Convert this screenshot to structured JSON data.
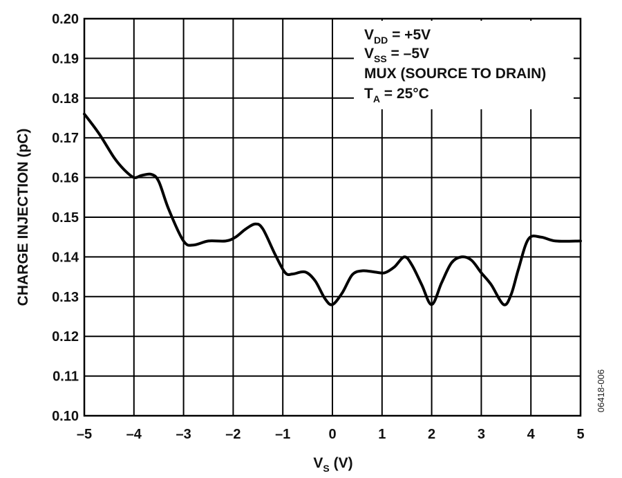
{
  "chart_data": {
    "type": "line",
    "title": "",
    "xlabel": "V",
    "xlabel_sub": "S",
    "xlabel_unit": " (V)",
    "ylabel": "CHARGE INJECTION (pC)",
    "xlim": [
      -5,
      5
    ],
    "ylim": [
      0.1,
      0.2
    ],
    "x_ticks": [
      -5,
      -4,
      -3,
      -2,
      -1,
      0,
      1,
      2,
      3,
      4,
      5
    ],
    "x_tick_labels": [
      "–5",
      "–4",
      "–3",
      "–2",
      "–1",
      "0",
      "1",
      "2",
      "3",
      "4",
      "5"
    ],
    "y_ticks": [
      0.1,
      0.11,
      0.12,
      0.13,
      0.14,
      0.15,
      0.16,
      0.17,
      0.18,
      0.19,
      0.2
    ],
    "y_tick_labels": [
      "0.10",
      "0.11",
      "0.12",
      "0.13",
      "0.14",
      "0.15",
      "0.16",
      "0.17",
      "0.18",
      "0.19",
      "0.20"
    ],
    "grid": true,
    "series": [
      {
        "x": [
          -5.0,
          -4.7,
          -4.4,
          -4.2,
          -4.0,
          -3.85,
          -3.65,
          -3.5,
          -3.3,
          -3.0,
          -2.8,
          -2.5,
          -2.15,
          -1.95,
          -1.75,
          -1.55,
          -1.4,
          -1.15,
          -0.95,
          -0.8,
          -0.55,
          -0.35,
          -0.15,
          0.0,
          0.2,
          0.4,
          0.6,
          0.85,
          1.05,
          1.25,
          1.45,
          1.6,
          1.8,
          2.0,
          2.2,
          2.4,
          2.6,
          2.8,
          3.0,
          3.2,
          3.45,
          3.6,
          3.75,
          3.95,
          4.2,
          4.5,
          5.0
        ],
        "y": [
          0.176,
          0.171,
          0.165,
          0.162,
          0.16,
          0.1605,
          0.1608,
          0.159,
          0.152,
          0.144,
          0.143,
          0.144,
          0.144,
          0.145,
          0.147,
          0.1483,
          0.147,
          0.1405,
          0.136,
          0.1357,
          0.1362,
          0.134,
          0.1295,
          0.128,
          0.131,
          0.1355,
          0.1365,
          0.1362,
          0.136,
          0.1375,
          0.14,
          0.138,
          0.133,
          0.128,
          0.1335,
          0.1385,
          0.14,
          0.1392,
          0.136,
          0.133,
          0.128,
          0.1305,
          0.137,
          0.1445,
          0.145,
          0.144,
          0.144
        ]
      }
    ]
  },
  "annotation": {
    "line1_main": "V",
    "line1_sub": "DD",
    "line1_rest": " = +5V",
    "line2_main": "V",
    "line2_sub": "SS",
    "line2_rest": " = –5V",
    "line3": "MUX (SOURCE TO DRAIN)",
    "line4_main": "T",
    "line4_sub": "A",
    "line4_rest": " = 25°C"
  },
  "figure_id": "06418-006"
}
